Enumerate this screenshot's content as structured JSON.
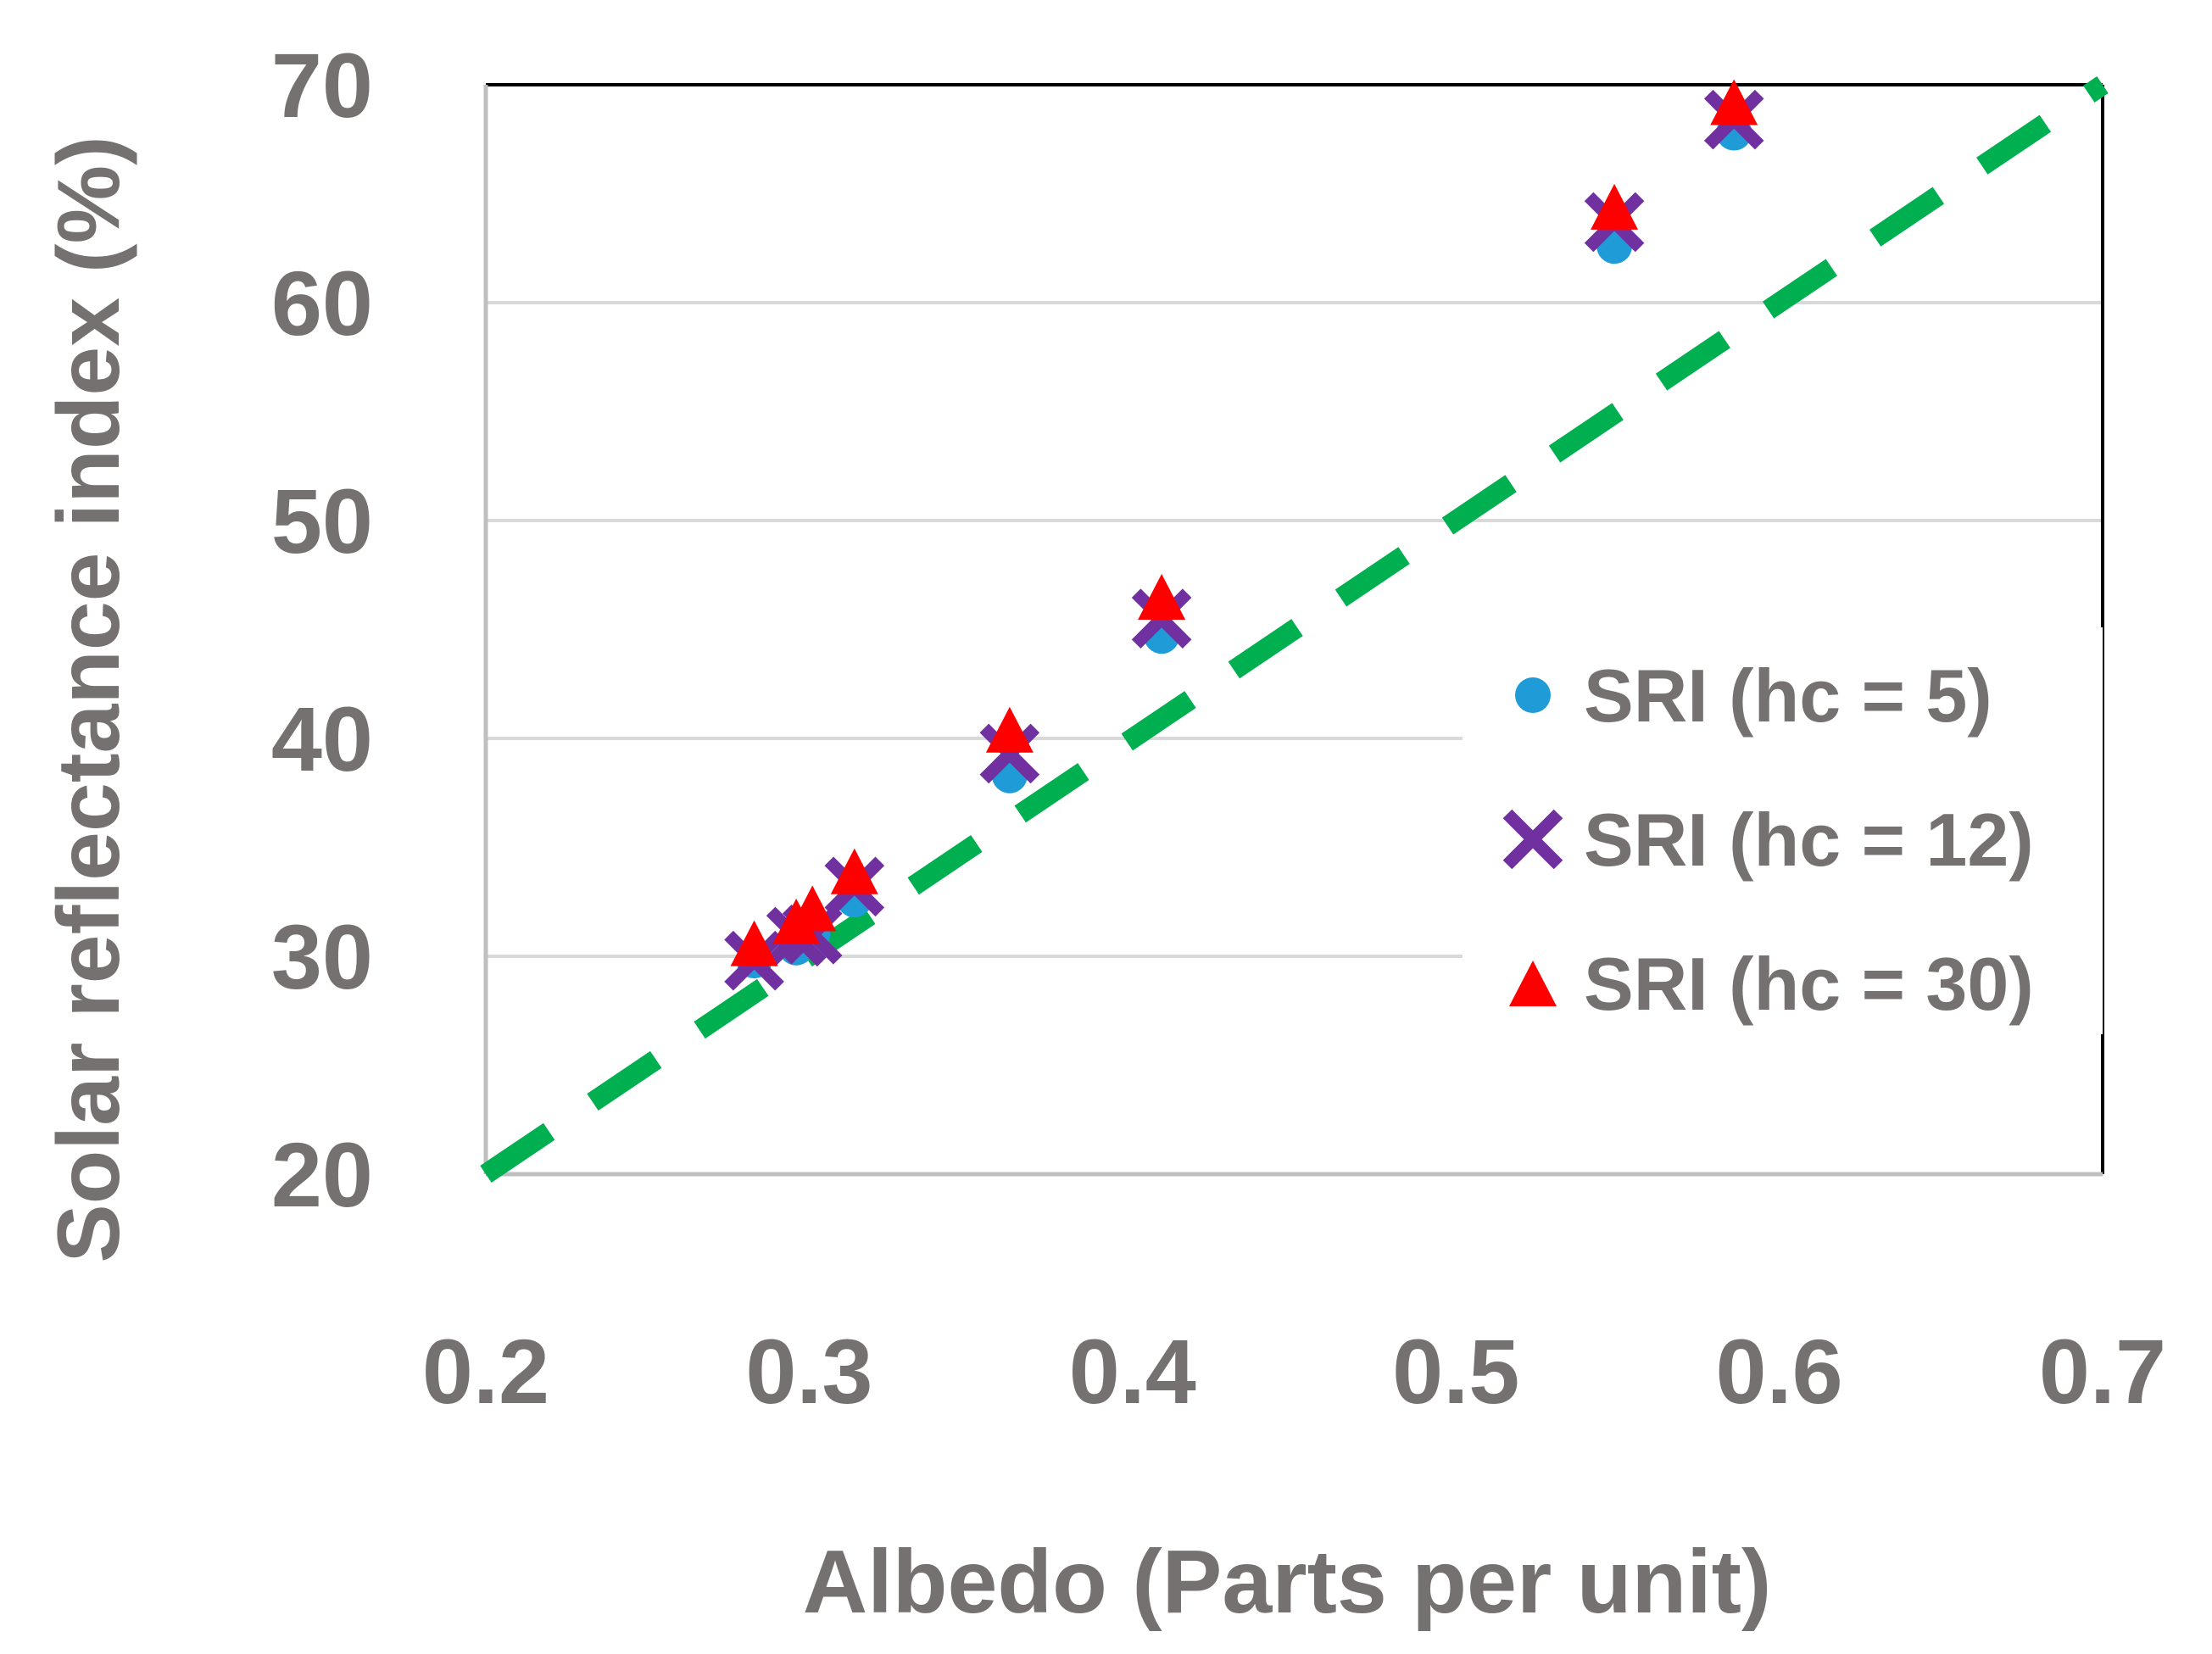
{
  "chart_data": {
    "type": "scatter",
    "title": "",
    "xlabel": "Albedo (Parts per unit)",
    "ylabel": "Solar reflectance index (%)",
    "xlim": [
      0.2,
      0.7
    ],
    "ylim": [
      20,
      70
    ],
    "xticks": [
      0.2,
      0.3,
      0.4,
      0.5,
      0.6,
      0.7
    ],
    "yticks": [
      20,
      30,
      40,
      50,
      60,
      70
    ],
    "xtick_labels": [
      "0.2",
      "0.3",
      "0.4",
      "0.5",
      "0.6",
      "0.7"
    ],
    "ytick_labels": [
      "20",
      "30",
      "40",
      "50",
      "60",
      "70"
    ],
    "grid": "horizontal",
    "legend_position": "right",
    "series": [
      {
        "name": "SRI (hc = 5)",
        "marker": "circle",
        "color": "#1f9bd7",
        "points": [
          {
            "x": 0.283,
            "y": 29.8
          },
          {
            "x": 0.296,
            "y": 30.4
          },
          {
            "x": 0.301,
            "y": 31.0
          },
          {
            "x": 0.314,
            "y": 32.6
          },
          {
            "x": 0.362,
            "y": 38.3
          },
          {
            "x": 0.409,
            "y": 44.7
          },
          {
            "x": 0.549,
            "y": 62.6
          },
          {
            "x": 0.586,
            "y": 67.8
          }
        ]
      },
      {
        "name": "SRI (hc = 12)",
        "marker": "x",
        "color": "#7030a0",
        "points": [
          {
            "x": 0.283,
            "y": 29.8
          },
          {
            "x": 0.296,
            "y": 30.9
          },
          {
            "x": 0.301,
            "y": 31.0
          },
          {
            "x": 0.314,
            "y": 33.2
          },
          {
            "x": 0.362,
            "y": 39.3
          },
          {
            "x": 0.409,
            "y": 45.5
          },
          {
            "x": 0.549,
            "y": 63.7
          },
          {
            "x": 0.586,
            "y": 68.4
          }
        ]
      },
      {
        "name": "SRI (hc = 30)",
        "marker": "triangle",
        "color": "#ff0000",
        "points": [
          {
            "x": 0.283,
            "y": 30.6
          },
          {
            "x": 0.296,
            "y": 31.6
          },
          {
            "x": 0.301,
            "y": 32.2
          },
          {
            "x": 0.314,
            "y": 33.9
          },
          {
            "x": 0.362,
            "y": 40.4
          },
          {
            "x": 0.409,
            "y": 46.5
          },
          {
            "x": 0.549,
            "y": 64.4
          },
          {
            "x": 0.586,
            "y": 69.2
          }
        ]
      }
    ],
    "reference_line": {
      "style": "dashed",
      "color": "#00b050",
      "points": [
        {
          "x": 0.2,
          "y": 20
        },
        {
          "x": 0.7,
          "y": 70
        }
      ]
    }
  },
  "colors": {
    "text": "#767171",
    "grid": "#d9d9d9",
    "axis": "#bfbfbf",
    "frame": "#000000"
  }
}
